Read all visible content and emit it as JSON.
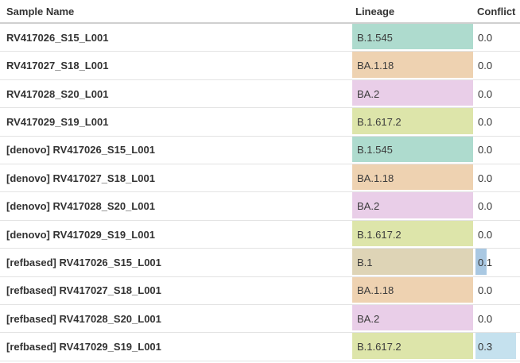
{
  "header": {
    "columns": {
      "sample": "Sample Name",
      "lineage": "Lineage",
      "conflict": "Conflict"
    }
  },
  "palette": {
    "lineage_teal": "#aedbce",
    "lineage_peach": "#eed2b1",
    "lineage_pink": "#e9cee8",
    "lineage_yellow_green": "#dde5aa",
    "lineage_tan": "#ded4b6",
    "bar_blue_medium": "#a9c8e2",
    "bar_blue_light": "#c5e1ee"
  },
  "rows": [
    {
      "sample": "RV417026_S15_L001",
      "lineage": "B.1.545",
      "lineage_color": "#aedbce",
      "conflict": "0.0",
      "bar_width_pct": 0,
      "bar_color": "transparent"
    },
    {
      "sample": "RV417027_S18_L001",
      "lineage": "BA.1.18",
      "lineage_color": "#eed2b1",
      "conflict": "0.0",
      "bar_width_pct": 0,
      "bar_color": "transparent"
    },
    {
      "sample": "RV417028_S20_L001",
      "lineage": "BA.2",
      "lineage_color": "#e9cee8",
      "conflict": "0.0",
      "bar_width_pct": 0,
      "bar_color": "transparent"
    },
    {
      "sample": "RV417029_S19_L001",
      "lineage": "B.1.617.2",
      "lineage_color": "#dde5aa",
      "conflict": "0.0",
      "bar_width_pct": 0,
      "bar_color": "transparent"
    },
    {
      "sample": "[denovo] RV417026_S15_L001",
      "lineage": "B.1.545",
      "lineage_color": "#aedbce",
      "conflict": "0.0",
      "bar_width_pct": 0,
      "bar_color": "transparent"
    },
    {
      "sample": "[denovo] RV417027_S18_L001",
      "lineage": "BA.1.18",
      "lineage_color": "#eed2b1",
      "conflict": "0.0",
      "bar_width_pct": 0,
      "bar_color": "transparent"
    },
    {
      "sample": "[denovo] RV417028_S20_L001",
      "lineage": "BA.2",
      "lineage_color": "#e9cee8",
      "conflict": "0.0",
      "bar_width_pct": 0,
      "bar_color": "transparent"
    },
    {
      "sample": "[denovo] RV417029_S19_L001",
      "lineage": "B.1.617.2",
      "lineage_color": "#dde5aa",
      "conflict": "0.0",
      "bar_width_pct": 0,
      "bar_color": "transparent"
    },
    {
      "sample": "[refbased] RV417026_S15_L001",
      "lineage": "B.1",
      "lineage_color": "#ded4b6",
      "conflict": "0.1",
      "bar_width_pct": 25,
      "bar_color": "#a9c8e2"
    },
    {
      "sample": "[refbased] RV417027_S18_L001",
      "lineage": "BA.1.18",
      "lineage_color": "#eed2b1",
      "conflict": "0.0",
      "bar_width_pct": 0,
      "bar_color": "transparent"
    },
    {
      "sample": "[refbased] RV417028_S20_L001",
      "lineage": "BA.2",
      "lineage_color": "#e9cee8",
      "conflict": "0.0",
      "bar_width_pct": 0,
      "bar_color": "transparent"
    },
    {
      "sample": "[refbased] RV417029_S19_L001",
      "lineage": "B.1.617.2",
      "lineage_color": "#dde5aa",
      "conflict": "0.3",
      "bar_width_pct": 91,
      "bar_color": "#c5e1ee"
    }
  ]
}
